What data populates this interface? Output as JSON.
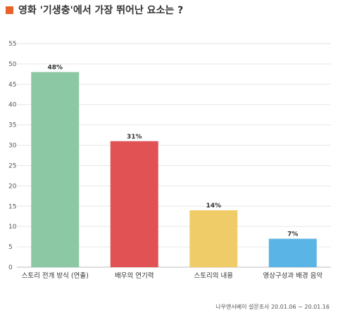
{
  "title": "영화 '기생충'에서 가장 뛰어난 요소는 ?",
  "title_marker_color": "#e8632b",
  "source": "나우앤서베이 설문조사 20.01.06 ~ 20.01.16",
  "chart_data": {
    "type": "bar",
    "categories": [
      "스토리 전개 방식 (연출)",
      "배우의 연기력",
      "스토리의 내용",
      "영상구성과 배경 음악"
    ],
    "values": [
      48,
      31,
      14,
      7
    ],
    "value_labels": [
      "48%",
      "31%",
      "14%",
      "7%"
    ],
    "colors": [
      "#8dc8a5",
      "#e05254",
      "#f0cc68",
      "#5bb4e6"
    ],
    "yticks": [
      0,
      5,
      10,
      15,
      20,
      25,
      30,
      35,
      40,
      45,
      50,
      55
    ],
    "ylim": [
      0,
      55
    ],
    "grid": true,
    "title": "영화 '기생충'에서 가장 뛰어난 요소는 ?",
    "xlabel": "",
    "ylabel": ""
  }
}
